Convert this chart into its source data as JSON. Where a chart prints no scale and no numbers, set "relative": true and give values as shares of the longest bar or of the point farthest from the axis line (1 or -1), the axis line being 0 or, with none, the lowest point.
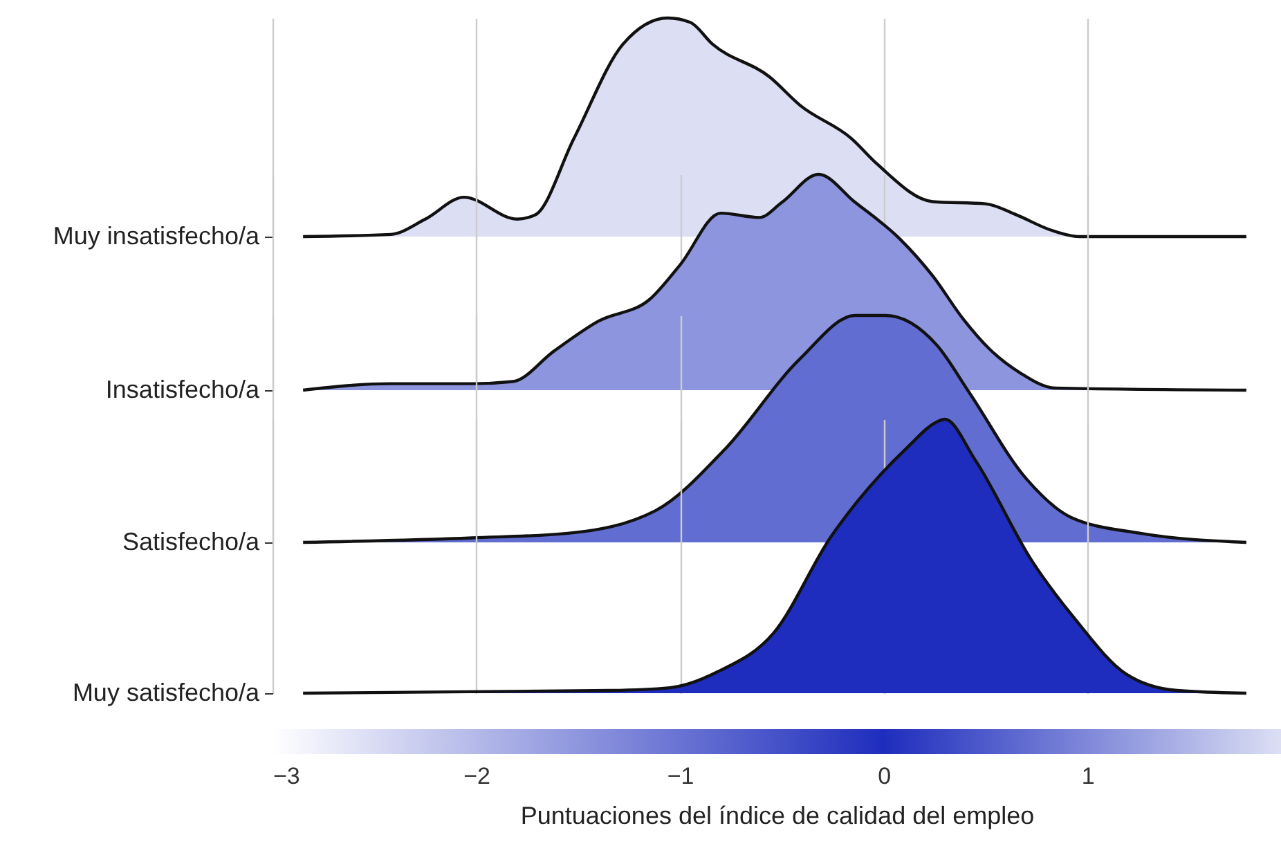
{
  "chart_data": [
    {
      "type": "area",
      "relative": true,
      "ylabel": "Muy insatisfecho/a",
      "xlim": [
        -3,
        1.95
      ],
      "xticks": [
        {
          "value": -3,
          "label": null
        },
        {
          "value": -2,
          "label": null
        },
        {
          "value": -1,
          "label": null
        },
        {
          "value": 0,
          "label": null
        },
        {
          "value": 1,
          "label": null
        }
      ],
      "grid": "x",
      "tick_labels": false,
      "series": [
        {
          "color": "#dcdff4",
          "x": [
            -2.85,
            -2.42,
            -2.25,
            -2.06,
            -1.8,
            -1.71,
            -1.52,
            -1.28,
            -1.06,
            -0.95,
            -0.84,
            -0.56,
            -0.41,
            -0.16,
            -0.03,
            0.24,
            0.5,
            0.65,
            0.82,
            0.96,
            1.78
          ],
          "values": [
            0,
            0.01,
            0.08,
            0.18,
            0.08,
            0.1,
            0.45,
            0.88,
            1,
            0.98,
            0.88,
            0.73,
            0.6,
            0.45,
            0.33,
            0.16,
            0.15,
            0.1,
            0.03,
            0,
            0
          ]
        }
      ]
    },
    {
      "type": "area",
      "relative": true,
      "ylabel": "Insatisfecho/a",
      "xlim": [
        -3,
        1.95
      ],
      "xticks": [
        {
          "value": -3,
          "label": null
        },
        {
          "value": -2,
          "label": null
        },
        {
          "value": -1,
          "label": null
        },
        {
          "value": 0,
          "label": null
        },
        {
          "value": 1,
          "label": null
        }
      ],
      "grid": "x",
      "tick_labels": false,
      "series": [
        {
          "color": "#8d95df",
          "x": [
            -2.85,
            -2.42,
            -2.02,
            -1.82,
            -1.62,
            -1.4,
            -1.15,
            -1.0,
            -0.8,
            -0.61,
            -0.5,
            -0.32,
            -0.14,
            0.08,
            0.24,
            0.39,
            0.52,
            0.67,
            0.84,
            1.78
          ],
          "values": [
            0,
            0.03,
            0.03,
            0.04,
            0.18,
            0.32,
            0.42,
            0.58,
            0.82,
            0.8,
            0.87,
            1,
            0.87,
            0.7,
            0.53,
            0.33,
            0.19,
            0.08,
            0.01,
            0
          ]
        }
      ]
    },
    {
      "type": "area",
      "relative": true,
      "ylabel": "Satisfecho/a",
      "xlim": [
        -3,
        1.95
      ],
      "xticks": [
        {
          "value": -3,
          "label": null
        },
        {
          "value": -2,
          "label": null
        },
        {
          "value": -1,
          "label": null
        },
        {
          "value": 0,
          "label": null
        },
        {
          "value": 1,
          "label": null
        }
      ],
      "grid": "x",
      "tick_labels": false,
      "series": [
        {
          "color": "#626dd1",
          "x": [
            -2.85,
            -2.02,
            -1.55,
            -1.12,
            -0.78,
            -0.41,
            -0.14,
            0.01,
            0.26,
            0.42,
            0.7,
            0.92,
            1.26,
            1.78
          ],
          "values": [
            0,
            0.02,
            0.04,
            0.14,
            0.41,
            0.81,
            1,
            1,
            0.87,
            0.66,
            0.28,
            0.11,
            0.04,
            0
          ]
        }
      ]
    },
    {
      "type": "area",
      "relative": true,
      "ylabel": "Muy satisfecho/a",
      "xlabel": "Puntuaciones del índice de calidad del empleo",
      "xlim": [
        -3,
        1.95
      ],
      "xticks": [
        {
          "value": -3,
          "label": "−3"
        },
        {
          "value": -2,
          "label": "−2"
        },
        {
          "value": -1,
          "label": "−1"
        },
        0,
        1
      ],
      "grid": "x",
      "tick_labels": "x",
      "series": [
        {
          "color": "#1e2dbd",
          "x": [
            -2.85,
            -1.34,
            -1.05,
            -0.81,
            -0.54,
            -0.26,
            0.12,
            0.26,
            0.3,
            0.45,
            0.73,
            0.94,
            1.19,
            1.44,
            1.78
          ],
          "values": [
            0,
            0.01,
            0.02,
            0.08,
            0.22,
            0.57,
            0.9,
            0.99,
            1,
            0.85,
            0.48,
            0.27,
            0.07,
            0.01,
            0
          ]
        }
      ]
    }
  ]
}
